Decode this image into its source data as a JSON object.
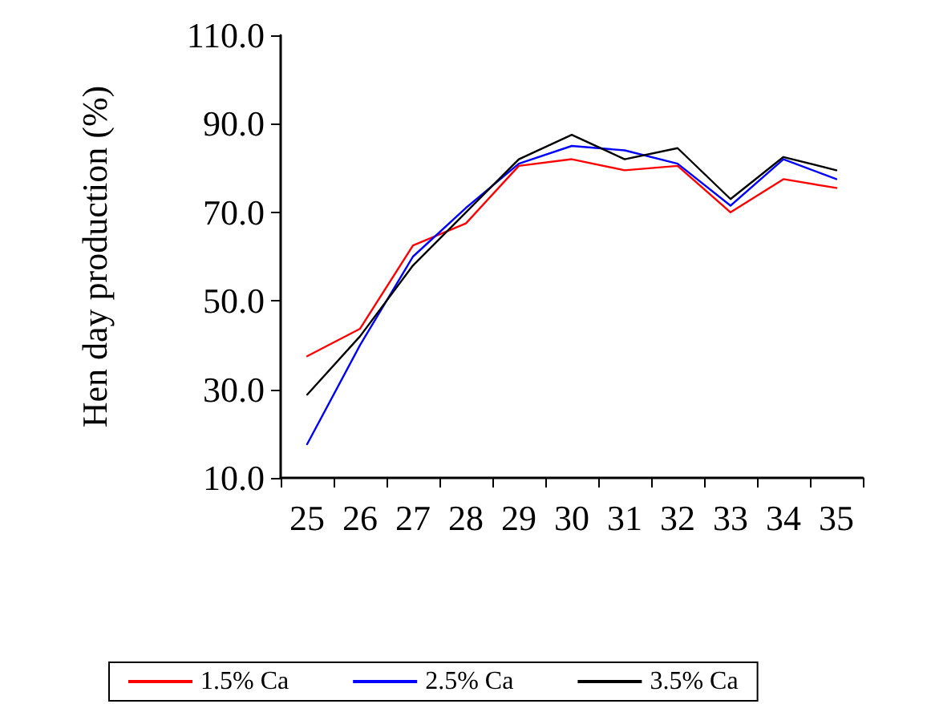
{
  "chart_data": {
    "type": "line",
    "ylabel": "Hen day production (%)",
    "categories": [
      "25",
      "26",
      "27",
      "28",
      "29",
      "30",
      "31",
      "32",
      "33",
      "34",
      "35"
    ],
    "series": [
      {
        "name": "1.5% Ca",
        "color": "#ff0000",
        "values": [
          37.5,
          43.7,
          62.5,
          67.5,
          80.5,
          82,
          79.5,
          80.5,
          70,
          77.5,
          75.5
        ]
      },
      {
        "name": "2.5% Ca",
        "color": "#0000ff",
        "values": [
          17.6,
          40,
          60,
          71,
          81,
          85,
          84,
          81,
          71.5,
          82,
          77.5
        ]
      },
      {
        "name": "3.5% Ca",
        "color": "#000000",
        "values": [
          28.8,
          42,
          58,
          70,
          82,
          87.5,
          82,
          84.5,
          73,
          82.5,
          79.5
        ]
      }
    ],
    "ylim": [
      10,
      110
    ],
    "yticks": [
      {
        "value": 10,
        "label": "10.0"
      },
      {
        "value": 30,
        "label": "30.0"
      },
      {
        "value": 50,
        "label": "50.0"
      },
      {
        "value": 70,
        "label": "70.0"
      },
      {
        "value": 90,
        "label": "90.0"
      },
      {
        "value": 110,
        "label": "110.0"
      }
    ],
    "grid": false,
    "legend": "bottom",
    "marker": "none",
    "line_style": "solid"
  }
}
